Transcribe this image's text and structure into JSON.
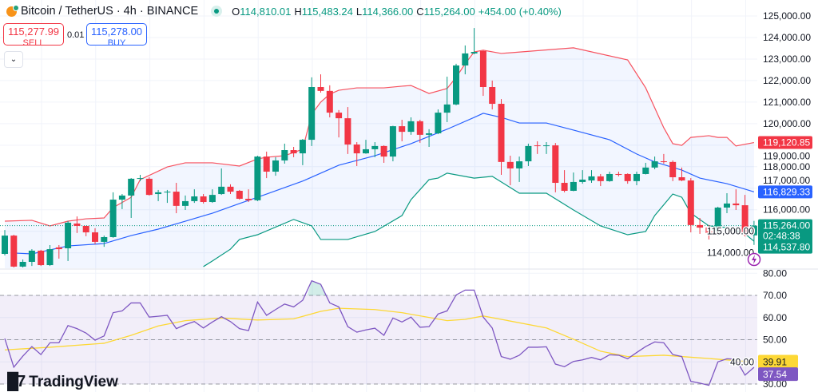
{
  "header": {
    "pair": "Bitcoin / TetherUS · 4h · BINANCE",
    "ohlc": [
      {
        "key": "O",
        "value": "114,810.01"
      },
      {
        "key": "H",
        "value": "115,483.24"
      },
      {
        "key": "L",
        "value": "114,366.00"
      },
      {
        "key": "C",
        "value": "115,264.00"
      }
    ],
    "change": "+454.00 (+0.40%)"
  },
  "trade": {
    "sell_price": "115,277.99",
    "sell_label": "SELL",
    "spread": "0.01",
    "buy_price": "115,278.00",
    "buy_label": "BUY",
    "collapse_icon": "chevron-down-icon"
  },
  "logo": "TradingView",
  "colors": {
    "up": "#089981",
    "down": "#F23645",
    "bb_upper": "#F7525F",
    "bb_basis": "#2962FF",
    "bb_lower": "#089981",
    "rsi": "#7E57C2",
    "rsi_ma": "#FDD835"
  },
  "chart_data": [
    {
      "type": "candlestick",
      "title": "Bitcoin / TetherUS · 4h · BINANCE",
      "ylim": [
        113300,
        125300
      ],
      "grid": true,
      "y_tick_labels": [
        "125,000.00",
        "124,000.00",
        "123,000.00",
        "122,000.00",
        "121,000.00",
        "120,000.00",
        "119,000.00",
        "118,000.00",
        "117,000.00",
        "116,000.00",
        "115,000.00",
        "114,000.00"
      ],
      "y_ticks": [
        125000,
        124000,
        123000,
        122000,
        121000,
        120000,
        119000,
        118000,
        117000,
        116000,
        115000,
        114000
      ],
      "ohlc": [
        [
          113950,
          115060,
          113880,
          114800
        ],
        [
          114800,
          114840,
          113320,
          113360
        ],
        [
          113360,
          113690,
          113320,
          113580
        ],
        [
          113580,
          114170,
          113390,
          114100
        ],
        [
          114100,
          114140,
          113390,
          113430
        ],
        [
          113430,
          114360,
          113390,
          114170
        ],
        [
          114250,
          114360,
          113730,
          114170
        ],
        [
          114210,
          115470,
          113620,
          115400
        ],
        [
          115360,
          115690,
          114920,
          115250
        ],
        [
          115250,
          115250,
          114770,
          114950
        ],
        [
          114950,
          115140,
          114400,
          114510
        ],
        [
          114510,
          114800,
          114280,
          114730
        ],
        [
          114730,
          116810,
          114700,
          116470
        ],
        [
          116470,
          116730,
          116030,
          116660
        ],
        [
          116660,
          117470,
          115620,
          117440
        ],
        [
          117440,
          117620,
          117330,
          117470
        ],
        [
          117440,
          117510,
          116660,
          116690
        ],
        [
          116730,
          116920,
          116400,
          116810
        ],
        [
          116810,
          116920,
          116320,
          116840
        ],
        [
          116840,
          117250,
          115840,
          116180
        ],
        [
          116180,
          116660,
          115990,
          116400
        ],
        [
          116400,
          116950,
          116320,
          116620
        ],
        [
          116620,
          116730,
          116290,
          116360
        ],
        [
          116360,
          116950,
          116320,
          116690
        ],
        [
          116730,
          117920,
          116690,
          117070
        ],
        [
          117070,
          117180,
          116730,
          116840
        ],
        [
          116880,
          116920,
          116470,
          116510
        ],
        [
          116510,
          116950,
          116360,
          116440
        ],
        [
          116440,
          118510,
          116400,
          118470
        ],
        [
          118470,
          118700,
          117470,
          117770
        ],
        [
          117770,
          118440,
          117580,
          118290
        ],
        [
          118290,
          119070,
          118140,
          118770
        ],
        [
          118770,
          118920,
          118440,
          118620
        ],
        [
          118620,
          119290,
          118070,
          119250
        ],
        [
          119250,
          122150,
          118960,
          121700
        ],
        [
          121700,
          122290,
          121440,
          121520
        ],
        [
          121520,
          121780,
          120290,
          120510
        ],
        [
          120510,
          120630,
          119360,
          120250
        ],
        [
          120250,
          120770,
          118590,
          119030
        ],
        [
          119030,
          119140,
          118030,
          118620
        ],
        [
          118620,
          119250,
          118600,
          118810
        ],
        [
          118810,
          119140,
          118440,
          118960
        ],
        [
          118960,
          118990,
          118180,
          118470
        ],
        [
          118470,
          119900,
          118250,
          119880
        ],
        [
          119880,
          120180,
          119180,
          119620
        ],
        [
          119620,
          120290,
          119480,
          120110
        ],
        [
          120110,
          120180,
          119110,
          119480
        ],
        [
          119480,
          119740,
          118920,
          119550
        ],
        [
          119550,
          120660,
          119510,
          120510
        ],
        [
          120510,
          122180,
          120070,
          120890
        ],
        [
          120890,
          122780,
          120850,
          122700
        ],
        [
          122700,
          123630,
          122290,
          123260
        ],
        [
          123260,
          124440,
          123220,
          123330
        ],
        [
          123370,
          123410,
          121290,
          121700
        ],
        [
          121700,
          122000,
          120660,
          120920
        ],
        [
          120920,
          121140,
          117620,
          118220
        ],
        [
          118220,
          118510,
          117140,
          117920
        ],
        [
          117920,
          118470,
          117290,
          118250
        ],
        [
          118250,
          119070,
          118030,
          118960
        ],
        [
          118990,
          119180,
          118590,
          118960
        ],
        [
          118960,
          119140,
          118590,
          118990
        ],
        [
          118990,
          119100,
          116810,
          117250
        ],
        [
          117250,
          117840,
          116810,
          116880
        ],
        [
          116880,
          117730,
          116860,
          117290
        ],
        [
          117290,
          117840,
          117210,
          117400
        ],
        [
          117360,
          117840,
          117250,
          117550
        ],
        [
          117550,
          117660,
          117100,
          117330
        ],
        [
          117330,
          117770,
          117300,
          117660
        ],
        [
          117660,
          117770,
          117550,
          117620
        ],
        [
          117660,
          117690,
          117210,
          117330
        ],
        [
          117330,
          117770,
          117140,
          117660
        ],
        [
          117660,
          118180,
          117640,
          117960
        ],
        [
          117960,
          118470,
          117880,
          118250
        ],
        [
          118250,
          118590,
          118140,
          118220
        ],
        [
          118220,
          118290,
          117330,
          117510
        ],
        [
          117510,
          117960,
          117330,
          117360
        ],
        [
          117360,
          117470,
          114950,
          115290
        ],
        [
          115290,
          115620,
          114880,
          115170
        ],
        [
          115170,
          115290,
          114620,
          114920
        ],
        [
          114920,
          116140,
          114800,
          116100
        ],
        [
          116100,
          116770,
          115840,
          116290
        ],
        [
          116290,
          116950,
          115990,
          116210
        ],
        [
          116210,
          116690,
          114760,
          114810
        ],
        [
          114810.01,
          115483.24,
          114366.0,
          115264.0
        ]
      ],
      "bollinger": {
        "upper": [
          [
            0,
            115470
          ],
          [
            3,
            115510
          ],
          [
            5,
            115250
          ],
          [
            7,
            115470
          ],
          [
            9,
            115580
          ],
          [
            11,
            115620
          ],
          [
            12,
            116100
          ],
          [
            14,
            116580
          ],
          [
            15,
            117400
          ],
          [
            18,
            117990
          ],
          [
            20,
            118180
          ],
          [
            23,
            118180
          ],
          [
            26,
            118030
          ],
          [
            28,
            118360
          ],
          [
            29,
            118440
          ],
          [
            31,
            118510
          ],
          [
            33,
            118810
          ],
          [
            34,
            120440
          ],
          [
            35,
            121000
          ],
          [
            36,
            121370
          ],
          [
            37,
            121550
          ],
          [
            39,
            121660
          ],
          [
            42,
            121660
          ],
          [
            44,
            121740
          ],
          [
            45,
            121770
          ],
          [
            47,
            121400
          ],
          [
            49,
            121630
          ],
          [
            50,
            122150
          ],
          [
            51,
            122780
          ],
          [
            52,
            123330
          ],
          [
            53,
            123410
          ],
          [
            55,
            123260
          ],
          [
            63,
            123520
          ],
          [
            69,
            122960
          ],
          [
            71,
            121660
          ],
          [
            73,
            119810
          ],
          [
            74,
            119070
          ],
          [
            75,
            118990
          ],
          [
            76,
            119360
          ],
          [
            78,
            119440
          ],
          [
            79,
            119360
          ],
          [
            80,
            119360
          ],
          [
            81,
            118960
          ],
          [
            83,
            119120.85
          ]
        ],
        "basis": [
          [
            1,
            113990
          ],
          [
            3,
            113950
          ],
          [
            7,
            114320
          ],
          [
            11,
            114430
          ],
          [
            14,
            114800
          ],
          [
            17,
            115100
          ],
          [
            20,
            115470
          ],
          [
            23,
            115840
          ],
          [
            26,
            116290
          ],
          [
            28,
            116580
          ],
          [
            29,
            116730
          ],
          [
            33,
            117330
          ],
          [
            37,
            118070
          ],
          [
            41,
            118510
          ],
          [
            45,
            119070
          ],
          [
            49,
            119740
          ],
          [
            52,
            120290
          ],
          [
            53,
            120480
          ],
          [
            55,
            120290
          ],
          [
            57,
            120030
          ],
          [
            60,
            120030
          ],
          [
            63,
            119700
          ],
          [
            67,
            119250
          ],
          [
            70,
            118590
          ],
          [
            72,
            118220
          ],
          [
            75,
            117840
          ],
          [
            77,
            117470
          ],
          [
            80,
            117210
          ],
          [
            83,
            116829.33
          ]
        ],
        "lower": [
          [
            22,
            113360
          ],
          [
            23,
            113620
          ],
          [
            25,
            114170
          ],
          [
            26,
            114620
          ],
          [
            28,
            114840
          ],
          [
            32,
            115550
          ],
          [
            34,
            115250
          ],
          [
            35,
            114620
          ],
          [
            38,
            114620
          ],
          [
            41,
            114990
          ],
          [
            44,
            115730
          ],
          [
            45,
            116470
          ],
          [
            47,
            117400
          ],
          [
            48,
            117470
          ],
          [
            49,
            117700
          ],
          [
            52,
            117470
          ],
          [
            54,
            117550
          ],
          [
            57,
            116770
          ],
          [
            60,
            116770
          ],
          [
            63,
            115990
          ],
          [
            66,
            115250
          ],
          [
            69,
            114840
          ],
          [
            71,
            114990
          ],
          [
            72,
            115730
          ],
          [
            74,
            116730
          ],
          [
            75,
            116580
          ],
          [
            76,
            115840
          ],
          [
            78,
            115250
          ],
          [
            80,
            115170
          ],
          [
            82,
            114880
          ],
          [
            83,
            114537.8
          ]
        ]
      },
      "price_labels": {
        "upper": "119,120.85",
        "basis": "116,829.33",
        "last": "115,264.00",
        "countdown": "02:48:38",
        "lower": "114,537.80"
      },
      "last_price": 115264.0
    },
    {
      "type": "line",
      "ylim": [
        27,
        82
      ],
      "y_ticks": [
        80,
        70,
        60,
        50,
        40,
        30
      ],
      "y_tick_labels": [
        "80.00",
        "70.00",
        "60.00",
        "50.00",
        "40.00",
        "30.00"
      ],
      "bands": {
        "upper": 70,
        "middle": 50,
        "lower": 30
      },
      "series": [
        {
          "key": "rsi",
          "values": [
            50.5,
            37.6,
            42.6,
            46.9,
            43.3,
            48.6,
            48.6,
            56.4,
            55.0,
            53.0,
            49.8,
            51.7,
            62.2,
            63.0,
            66.6,
            66.6,
            60.2,
            60.6,
            61.0,
            55.0,
            56.8,
            58.2,
            55.3,
            58.0,
            60.4,
            58.2,
            55.0,
            54.1,
            67.0,
            61.0,
            63.6,
            66.1,
            64.8,
            67.8,
            76.6,
            75.0,
            66.6,
            64.8,
            55.9,
            53.4,
            54.4,
            55.2,
            52.0,
            59.8,
            58.0,
            60.2,
            55.6,
            55.9,
            61.6,
            63.0,
            70.2,
            72.4,
            72.4,
            60.2,
            55.3,
            42.4,
            41.2,
            43.0,
            46.6,
            46.6,
            46.8,
            39.0,
            37.8,
            40.2,
            40.9,
            42.0,
            40.9,
            43.2,
            43.0,
            41.4,
            44.2,
            46.9,
            49.0,
            48.6,
            43.3,
            42.4,
            31.2,
            30.4,
            29.4,
            40.0,
            41.4,
            41.2,
            34.0,
            37.54
          ]
        },
        {
          "key": "rsi_ma",
          "points": [
            [
              0,
              45.4
            ],
            [
              5,
              46.6
            ],
            [
              11,
              48.4
            ],
            [
              14,
              52.0
            ],
            [
              17,
              56.2
            ],
            [
              20,
              58.6
            ],
            [
              24,
              59.8
            ],
            [
              28,
              58.9
            ],
            [
              32,
              59.4
            ],
            [
              35,
              62.8
            ],
            [
              37,
              64.2
            ],
            [
              41,
              63.6
            ],
            [
              44,
              62.2
            ],
            [
              49,
              58.6
            ],
            [
              51,
              59.2
            ],
            [
              53,
              60.7
            ],
            [
              55,
              59.2
            ],
            [
              60,
              55.3
            ],
            [
              63,
              50.2
            ],
            [
              66,
              44.8
            ],
            [
              69,
              42.4
            ],
            [
              73,
              43.0
            ],
            [
              76,
              42.1
            ],
            [
              79,
              41.2
            ],
            [
              83,
              39.91
            ]
          ]
        }
      ],
      "value_labels": {
        "rsi_ma": "39.91",
        "rsi": "37.54"
      }
    }
  ]
}
